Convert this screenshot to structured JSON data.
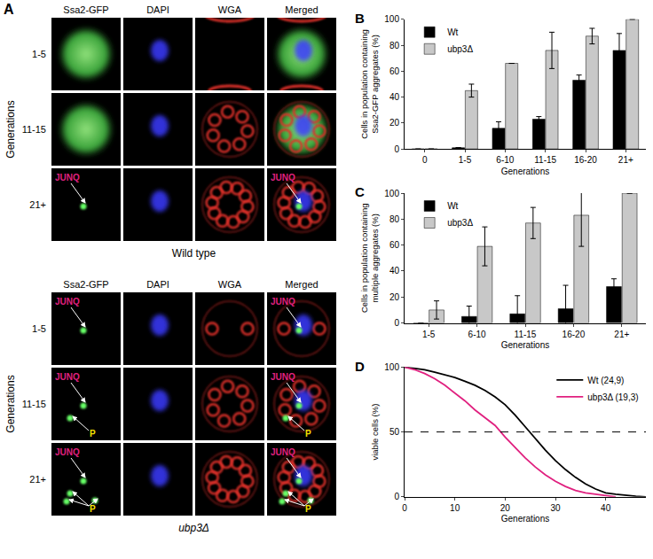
{
  "panel_a": {
    "label": "A",
    "row_axis": "Generations",
    "columns": [
      "Ssa2-GFP",
      "DAPI",
      "WGA",
      "Merged"
    ],
    "genotypes": [
      {
        "name": "Wild type",
        "rows": [
          {
            "label": "1-5",
            "marks": []
          },
          {
            "label": "11-15",
            "marks": []
          },
          {
            "label": "21+",
            "marks": [
              {
                "text": "JUNQ",
                "arrows": 1
              }
            ]
          }
        ]
      },
      {
        "name": "ubp3Δ",
        "rows": [
          {
            "label": "1-5",
            "marks": [
              {
                "text": "JUNQ",
                "arrows": 1
              }
            ]
          },
          {
            "label": "11-15",
            "marks": [
              {
                "text": "JUNQ",
                "arrows": 1
              },
              {
                "text": "P",
                "arrows": 1
              }
            ]
          },
          {
            "label": "21+",
            "marks": [
              {
                "text": "JUNQ",
                "arrows": 1
              },
              {
                "text": "P",
                "arrows": 3
              }
            ]
          }
        ]
      }
    ]
  },
  "chart_data": [
    {
      "title": "B",
      "type": "bar",
      "categories": [
        "0",
        "1-5",
        "6-10",
        "11-15",
        "16-20",
        "21+"
      ],
      "series": [
        {
          "name": "Wt",
          "color": "#000000",
          "values": [
            0,
            1,
            16,
            23,
            53,
            76
          ],
          "error": [
            0,
            0,
            5,
            2,
            4,
            13
          ]
        },
        {
          "name": "ubp3Δ",
          "color": "#c8c8c8",
          "values": [
            0,
            45,
            66,
            76,
            87,
            100
          ],
          "error": [
            0,
            5,
            0,
            14,
            6,
            0
          ]
        }
      ],
      "x_label": "Generations",
      "y_label": "Cells in population containing Ssa2-GFP aggregates (%)",
      "ylim": [
        0,
        100
      ],
      "yticks": [
        0,
        20,
        40,
        60,
        80,
        100
      ],
      "legend": "upper left"
    },
    {
      "title": "C",
      "type": "bar",
      "categories": [
        "1-5",
        "6-10",
        "11-15",
        "16-20",
        "21+"
      ],
      "series": [
        {
          "name": "Wt",
          "color": "#000000",
          "values": [
            0,
            5,
            7,
            11,
            28
          ],
          "error": [
            0,
            8,
            14,
            18,
            6
          ]
        },
        {
          "name": "ubp3Δ",
          "color": "#c8c8c8",
          "values": [
            10,
            59,
            77,
            83,
            100
          ],
          "error": [
            7,
            15,
            12,
            24,
            0
          ]
        }
      ],
      "x_label": "Generations",
      "y_label": "Cells in population containing multiple aggregates (%)",
      "ylim": [
        0,
        100
      ],
      "yticks": [
        0,
        20,
        40,
        60,
        80,
        100
      ],
      "legend": "upper left"
    },
    {
      "title": "D",
      "type": "line",
      "x": [
        0,
        2,
        4,
        6,
        8,
        10,
        12,
        14,
        16,
        18,
        20,
        22,
        24,
        26,
        28,
        30,
        32,
        34,
        36,
        38,
        40,
        42,
        44,
        46,
        48
      ],
      "series": [
        {
          "name": "Wt (24,9)",
          "color": "#000000",
          "values": [
            100,
            99,
            98,
            96,
            94,
            92,
            89,
            86,
            82,
            77,
            71,
            63,
            54,
            45,
            36,
            28,
            21,
            15,
            10,
            6,
            3,
            2,
            1,
            0.5,
            0
          ]
        },
        {
          "name": "ubp3Δ (19,3)",
          "color": "#e0207f",
          "values": [
            100,
            98,
            95,
            91,
            86,
            80,
            74,
            67,
            61,
            55,
            46,
            38,
            30,
            23,
            17,
            12,
            8,
            5,
            3,
            2,
            1,
            0,
            null,
            null,
            null
          ]
        }
      ],
      "x_label": "Generations",
      "y_label": "viable cells (%)",
      "xlim": [
        0,
        48
      ],
      "xticks": [
        0,
        10,
        20,
        30,
        40
      ],
      "ylim": [
        0,
        100
      ],
      "yticks": [
        0,
        50,
        100
      ],
      "reference_line": {
        "y": 50,
        "line_style": "dashed"
      },
      "legend": "upper right"
    }
  ]
}
